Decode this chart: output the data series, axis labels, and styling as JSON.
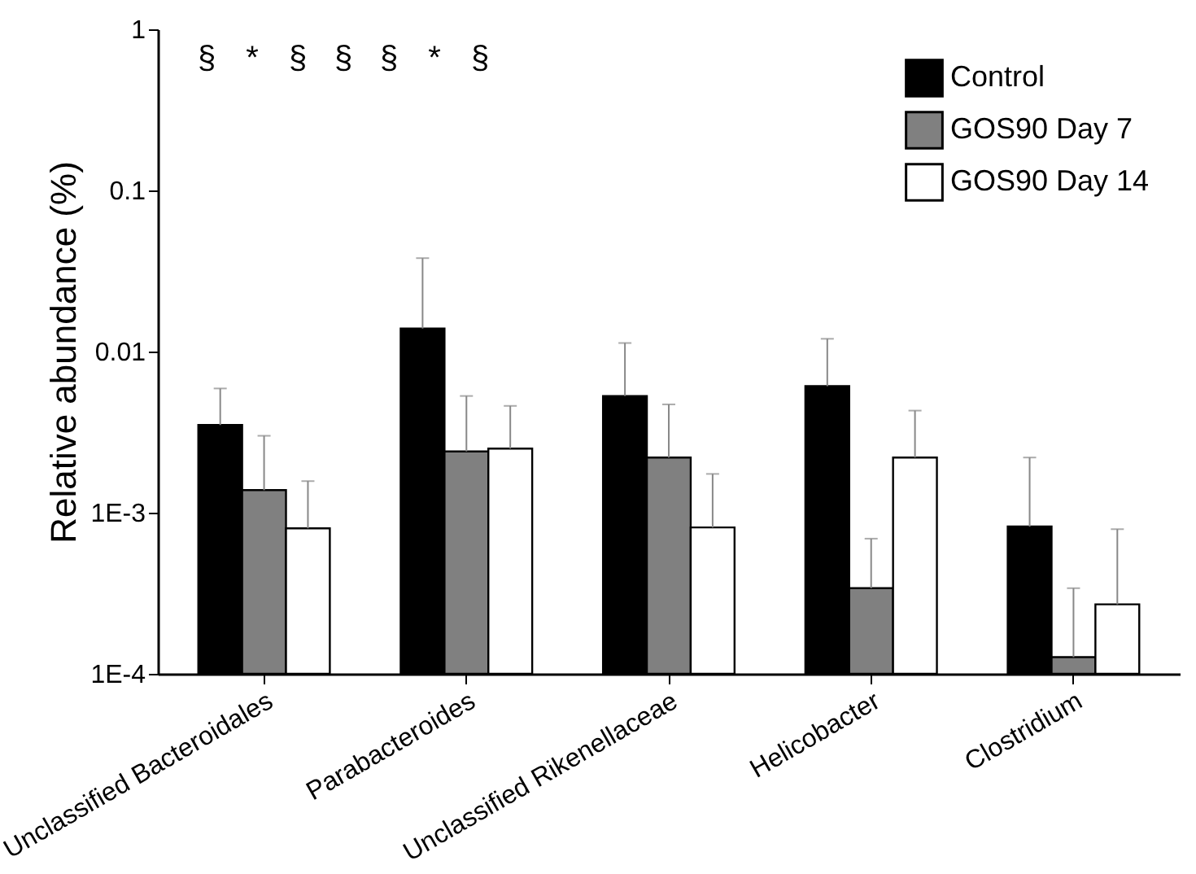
{
  "chart_data": {
    "type": "bar",
    "ylabel": "Relative abundance (%)",
    "categories": [
      "Unclassified Bacteroidales",
      "Parabacteroides",
      "Unclassified Rikenellaceae",
      "Helicobacter",
      "Clostridium"
    ],
    "series": [
      {
        "name": "Control",
        "color": "#000000",
        "values": [
          0.0035,
          0.0139,
          0.0053,
          0.0061,
          0.00082
        ],
        "errors": [
          [
            0.0035,
            0.0059
          ],
          [
            0.0139,
            0.038
          ],
          [
            0.0053,
            0.0113
          ],
          [
            0.0061,
            0.012
          ],
          [
            0.00082,
            0.0022
          ]
        ]
      },
      {
        "name": "GOS90 Day 7",
        "color": "#808080",
        "values": [
          0.00138,
          0.0024,
          0.0022,
          0.00034,
          0.000127
        ],
        "errors": [
          [
            0.00138,
            0.003
          ],
          [
            0.0024,
            0.0053
          ],
          [
            0.0022,
            0.0047
          ],
          [
            0.00034,
            0.00069
          ],
          [
            0.000127,
            0.00034
          ]
        ]
      },
      {
        "name": "GOS90 Day 14",
        "color": "#ffffff",
        "values": [
          0.0008,
          0.0025,
          0.00081,
          0.0022,
          0.00027
        ],
        "errors": [
          [
            0.0008,
            0.00157
          ],
          [
            0.0025,
            0.0046
          ],
          [
            0.00081,
            0.00174
          ],
          [
            0.0022,
            0.0043
          ],
          [
            0.00027,
            0.00079
          ]
        ]
      }
    ],
    "log": true,
    "ylim": [
      0.0001,
      1
    ],
    "yticks": [
      {
        "value": 0.0001,
        "label": "1E-4"
      },
      {
        "value": 0.001,
        "label": "1E-3"
      },
      0.01,
      0.1,
      1
    ],
    "grid": false,
    "legend": "top right",
    "annotations": [
      "§",
      "*",
      "§",
      "§",
      "§",
      "*",
      "§"
    ]
  }
}
